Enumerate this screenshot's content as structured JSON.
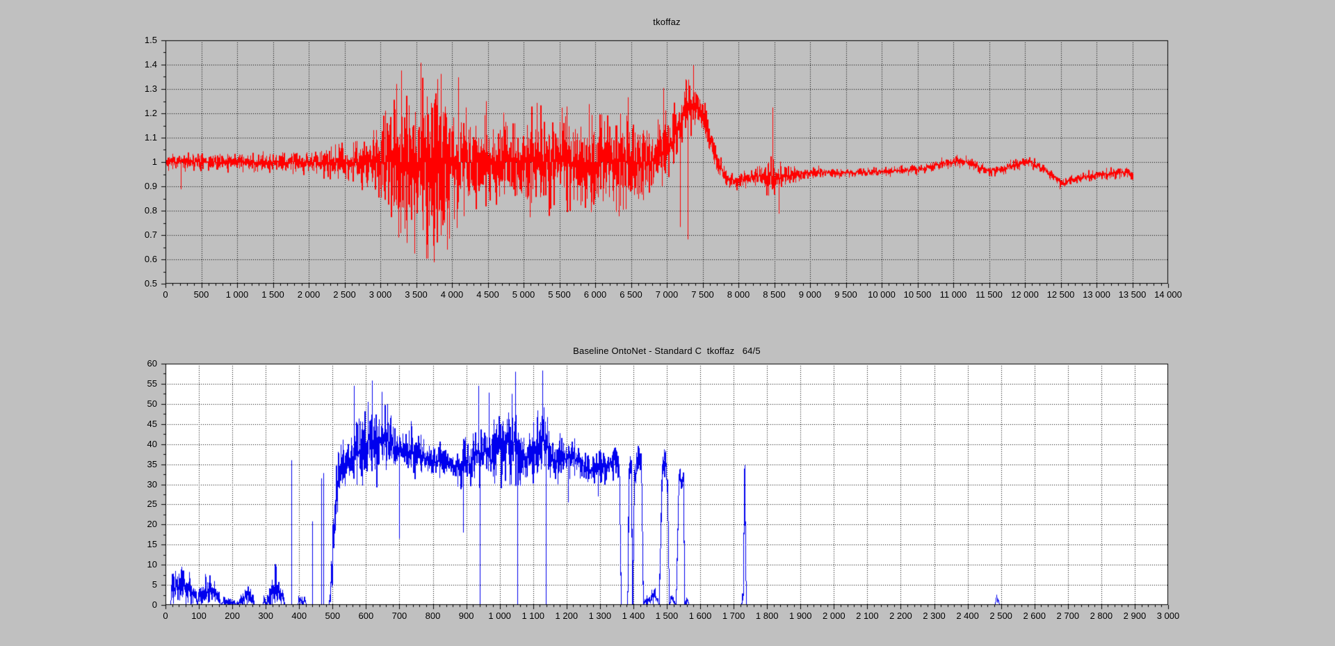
{
  "page": {
    "background": "#c0c0c0",
    "text_color": "#000000"
  },
  "chart_data": [
    {
      "type": "line",
      "title": "tkoffaz",
      "series_color": "#ff0000",
      "plot_bg": "#c0c0c0",
      "grid_color": "#000000",
      "axis_color": "#000000",
      "grid": "dotted",
      "legend": "none",
      "xlim": [
        0,
        14000
      ],
      "ylim": [
        0.5,
        1.5
      ],
      "x_major_step": 500,
      "x_minor_step": 100,
      "y_major_step": 0.1,
      "y_minor_step": 0.05,
      "data_end_x": 13500,
      "clamp_zero": false,
      "x_tick_labels": [
        "0",
        "500",
        "1 000",
        "1 500",
        "2 000",
        "2 500",
        "3 000",
        "3 500",
        "4 000",
        "4 500",
        "5 000",
        "5 500",
        "6 000",
        "6 500",
        "7 000",
        "7 500",
        "8 000",
        "8 500",
        "9 000",
        "9 500",
        "10 000",
        "10 500",
        "11 000",
        "11 500",
        "12 000",
        "12 500",
        "13 000",
        "13 500",
        "14 000"
      ],
      "y_tick_labels": [
        "0.5",
        "0.6",
        "0.7",
        "0.8",
        "0.9",
        "1",
        "1.1",
        "1.2",
        "1.3",
        "1.4",
        "1.5"
      ],
      "envelope": [
        [
          0,
          1.0,
          0.03
        ],
        [
          600,
          1.0,
          0.032
        ],
        [
          1200,
          1.0,
          0.036
        ],
        [
          1700,
          1.0,
          0.04
        ],
        [
          2100,
          1.0,
          0.05
        ],
        [
          2450,
          1.0,
          0.062
        ],
        [
          2700,
          1.0,
          0.085
        ],
        [
          2950,
          1.0,
          0.12
        ],
        [
          3100,
          1.0,
          0.2
        ],
        [
          3250,
          1.0,
          0.26
        ],
        [
          3450,
          1.0,
          0.29
        ],
        [
          3650,
          1.0,
          0.31
        ],
        [
          3850,
          1.0,
          0.28
        ],
        [
          4000,
          1.0,
          0.23
        ],
        [
          4200,
          1.0,
          0.18
        ],
        [
          4400,
          1.0,
          0.155
        ],
        [
          4600,
          1.0,
          0.165
        ],
        [
          4800,
          1.0,
          0.155
        ],
        [
          5000,
          1.0,
          0.165
        ],
        [
          5200,
          1.0,
          0.19
        ],
        [
          5400,
          1.0,
          0.17
        ],
        [
          5600,
          1.0,
          0.18
        ],
        [
          5800,
          1.0,
          0.168
        ],
        [
          6000,
          1.0,
          0.185
        ],
        [
          6200,
          1.0,
          0.17
        ],
        [
          6400,
          1.0,
          0.18
        ],
        [
          6600,
          1.0,
          0.17
        ],
        [
          6800,
          1.005,
          0.155
        ],
        [
          6950,
          1.03,
          0.135
        ],
        [
          7100,
          1.1,
          0.115
        ],
        [
          7250,
          1.21,
          0.1
        ],
        [
          7400,
          1.24,
          0.09
        ],
        [
          7550,
          1.15,
          0.08
        ],
        [
          7700,
          1.0,
          0.055
        ],
        [
          7850,
          0.925,
          0.038
        ],
        [
          8050,
          0.93,
          0.035
        ],
        [
          8250,
          0.94,
          0.042
        ],
        [
          8420,
          0.945,
          0.075
        ],
        [
          8550,
          0.935,
          0.055
        ],
        [
          8700,
          0.94,
          0.038
        ],
        [
          8900,
          0.952,
          0.028
        ],
        [
          9150,
          0.958,
          0.022
        ],
        [
          9450,
          0.955,
          0.018
        ],
        [
          9800,
          0.958,
          0.018
        ],
        [
          10150,
          0.962,
          0.018
        ],
        [
          10500,
          0.968,
          0.019
        ],
        [
          10800,
          0.99,
          0.022
        ],
        [
          11050,
          1.005,
          0.023
        ],
        [
          11250,
          0.995,
          0.021
        ],
        [
          11450,
          0.965,
          0.022
        ],
        [
          11650,
          0.968,
          0.02
        ],
        [
          11850,
          0.99,
          0.022
        ],
        [
          12050,
          1.002,
          0.023
        ],
        [
          12250,
          0.972,
          0.02
        ],
        [
          12400,
          0.94,
          0.018
        ],
        [
          12520,
          0.912,
          0.017
        ],
        [
          12650,
          0.924,
          0.018
        ],
        [
          12800,
          0.938,
          0.02
        ],
        [
          13000,
          0.947,
          0.02
        ],
        [
          13200,
          0.952,
          0.021
        ],
        [
          13380,
          0.956,
          0.022
        ],
        [
          13500,
          0.95,
          0.02
        ]
      ],
      "spikes": [
        [
          215,
          0.888
        ],
        [
          3290,
          1.376
        ],
        [
          3475,
          0.624
        ],
        [
          3560,
          1.408
        ],
        [
          3645,
          0.603
        ],
        [
          3745,
          0.588
        ],
        [
          3845,
          1.362
        ],
        [
          3930,
          0.64
        ],
        [
          4085,
          1.348
        ],
        [
          4480,
          1.25
        ],
        [
          5185,
          1.243
        ],
        [
          5915,
          1.238
        ],
        [
          6460,
          1.266
        ],
        [
          6950,
          1.304
        ],
        [
          7180,
          0.733
        ],
        [
          7290,
          0.682
        ],
        [
          7365,
          1.398
        ],
        [
          8475,
          1.224
        ],
        [
          8560,
          0.788
        ],
        [
          12490,
          0.888
        ]
      ]
    },
    {
      "type": "line",
      "title": "Baseline OntoNet - Standard C  tkoffaz   64/5",
      "series_color": "#0000ee",
      "plot_bg": "#ffffff",
      "grid_color": "#000000",
      "axis_color": "#000000",
      "grid": "dotted",
      "legend": "none",
      "xlim": [
        0,
        3000
      ],
      "ylim": [
        0,
        60
      ],
      "x_major_step": 100,
      "x_minor_step": 20,
      "y_major_step": 5,
      "y_minor_step": 2.5,
      "data_end_x": 2900,
      "clamp_zero": true,
      "x_tick_labels": [
        "0",
        "100",
        "200",
        "300",
        "400",
        "500",
        "600",
        "700",
        "800",
        "900",
        "1 000",
        "1 100",
        "1 200",
        "1 300",
        "1 400",
        "1 500",
        "1 600",
        "1 700",
        "1 800",
        "1 900",
        "2 000",
        "2 100",
        "2 200",
        "2 300",
        "2 400",
        "2 500",
        "2 600",
        "2 700",
        "2 800",
        "2 900",
        "3 000"
      ],
      "y_tick_labels": [
        "0",
        "5",
        "10",
        "15",
        "20",
        "25",
        "30",
        "35",
        "40",
        "45",
        "50",
        "55",
        "60"
      ],
      "envelope": [
        [
          0,
          0,
          0
        ],
        [
          14,
          0,
          0
        ],
        [
          17,
          4,
          4.5
        ],
        [
          32,
          4.5,
          4.5
        ],
        [
          47,
          5,
          4.5
        ],
        [
          62,
          4.5,
          4
        ],
        [
          76,
          3.5,
          3.5
        ],
        [
          90,
          2,
          2
        ],
        [
          94,
          0,
          0
        ],
        [
          98,
          2.5,
          3
        ],
        [
          112,
          3,
          3.5
        ],
        [
          126,
          3.5,
          3.5
        ],
        [
          140,
          3,
          3
        ],
        [
          155,
          2,
          2.5
        ],
        [
          164,
          0,
          0
        ],
        [
          172,
          0.8,
          1.2
        ],
        [
          202,
          0.8,
          1.2
        ],
        [
          208,
          0,
          0
        ],
        [
          228,
          1.5,
          2
        ],
        [
          244,
          2.5,
          2.5
        ],
        [
          258,
          1.5,
          2
        ],
        [
          264,
          0,
          0
        ],
        [
          290,
          0,
          0
        ],
        [
          294,
          1.5,
          1.5
        ],
        [
          298,
          0,
          0
        ],
        [
          316,
          3.5,
          3.5
        ],
        [
          330,
          5,
          4.5
        ],
        [
          342,
          3,
          3
        ],
        [
          352,
          1.5,
          1.5
        ],
        [
          356,
          0,
          0
        ],
        [
          394,
          0,
          0
        ],
        [
          398,
          1,
          1.4
        ],
        [
          416,
          1,
          1.4
        ],
        [
          421,
          0,
          0
        ],
        [
          459,
          0,
          0
        ],
        [
          488,
          0,
          0
        ],
        [
          494,
          5,
          6
        ],
        [
          504,
          21,
          10
        ],
        [
          514,
          30,
          6
        ],
        [
          524,
          34,
          5
        ],
        [
          540,
          36,
          5
        ],
        [
          562,
          37,
          6
        ],
        [
          584,
          39,
          8
        ],
        [
          606,
          41,
          9
        ],
        [
          624,
          41,
          10
        ],
        [
          644,
          40,
          8
        ],
        [
          664,
          41,
          8
        ],
        [
          684,
          39,
          7
        ],
        [
          702,
          38,
          6
        ],
        [
          718,
          37,
          6
        ],
        [
          734,
          39,
          6
        ],
        [
          750,
          37,
          5
        ],
        [
          766,
          36,
          5
        ],
        [
          782,
          37,
          5
        ],
        [
          798,
          35,
          4
        ],
        [
          814,
          36,
          4
        ],
        [
          830,
          34.5,
          4
        ],
        [
          846,
          35,
          5
        ],
        [
          862,
          34,
          4
        ],
        [
          878,
          35,
          5
        ],
        [
          894,
          36,
          6
        ],
        [
          910,
          35,
          5
        ],
        [
          926,
          37,
          6
        ],
        [
          942,
          38,
          8
        ],
        [
          958,
          38,
          7
        ],
        [
          972,
          36,
          6
        ],
        [
          986,
          38,
          7
        ],
        [
          1002,
          39,
          8
        ],
        [
          1018,
          40,
          8
        ],
        [
          1034,
          41,
          9
        ],
        [
          1048,
          40,
          9
        ],
        [
          1062,
          38,
          7
        ],
        [
          1076,
          37,
          6
        ],
        [
          1092,
          37,
          6
        ],
        [
          1106,
          38,
          7
        ],
        [
          1120,
          40,
          9
        ],
        [
          1134,
          41,
          9
        ],
        [
          1150,
          37,
          6
        ],
        [
          1166,
          36,
          5
        ],
        [
          1182,
          37,
          5
        ],
        [
          1198,
          36,
          5
        ],
        [
          1214,
          37,
          5
        ],
        [
          1230,
          36,
          4
        ],
        [
          1246,
          35,
          4
        ],
        [
          1262,
          34,
          4
        ],
        [
          1278,
          33.5,
          3
        ],
        [
          1294,
          34,
          4
        ],
        [
          1310,
          35,
          4
        ],
        [
          1326,
          35,
          4
        ],
        [
          1342,
          36,
          4
        ],
        [
          1356,
          34.5,
          4
        ],
        [
          1362,
          0,
          0
        ],
        [
          1381,
          0,
          0
        ],
        [
          1385,
          32,
          5
        ],
        [
          1392,
          35,
          3
        ],
        [
          1396,
          0,
          0
        ],
        [
          1402,
          31,
          4
        ],
        [
          1409,
          34,
          4
        ],
        [
          1416,
          35,
          4
        ],
        [
          1423,
          34,
          4
        ],
        [
          1428,
          0,
          0
        ],
        [
          1437,
          1.5,
          1.5
        ],
        [
          1447,
          1,
          1
        ],
        [
          1457,
          2,
          2
        ],
        [
          1467,
          2,
          2
        ],
        [
          1475,
          0,
          0
        ],
        [
          1485,
          33,
          4
        ],
        [
          1491,
          36,
          3
        ],
        [
          1497,
          34,
          5
        ],
        [
          1502,
          26,
          8
        ],
        [
          1506,
          0,
          0
        ],
        [
          1512,
          1.5,
          1.5
        ],
        [
          1520,
          1,
          1
        ],
        [
          1526,
          0,
          0
        ],
        [
          1535,
          32,
          2
        ],
        [
          1542,
          30,
          3
        ],
        [
          1548,
          31,
          2
        ],
        [
          1552,
          0,
          0
        ],
        [
          1559,
          2,
          2
        ],
        [
          1565,
          0,
          0
        ],
        [
          1722,
          0,
          0
        ],
        [
          1727,
          3,
          2
        ],
        [
          1731,
          33,
          2
        ],
        [
          1736,
          0,
          0
        ],
        [
          2480,
          0,
          0
        ],
        [
          2486,
          2,
          1.2
        ],
        [
          2494,
          0,
          0
        ],
        [
          2900,
          0,
          0
        ]
      ],
      "spikes": [
        [
          47,
          9.5
        ],
        [
          70,
          8.2
        ],
        [
          120,
          7
        ],
        [
          330,
          9.6
        ],
        [
          376,
          36
        ],
        [
          440,
          20.8
        ],
        [
          466,
          31.5
        ],
        [
          472,
          32.8
        ],
        [
          563,
          54.5
        ],
        [
          605,
          50.5
        ],
        [
          617,
          55.8
        ],
        [
          648,
          53
        ],
        [
          700,
          16.5
        ],
        [
          890,
          18
        ],
        [
          936,
          54.5
        ],
        [
          940,
          0
        ],
        [
          968,
          52.8
        ],
        [
          1036,
          52.5
        ],
        [
          1046,
          58
        ],
        [
          1052,
          0
        ],
        [
          1128,
          58.3
        ],
        [
          1138,
          0
        ],
        [
          1205,
          25.5
        ],
        [
          1295,
          27
        ],
        [
          1390,
          37
        ],
        [
          1415,
          39.5
        ],
        [
          1491,
          38.7
        ],
        [
          1540,
          33.5
        ],
        [
          1733,
          34.8
        ]
      ]
    }
  ]
}
